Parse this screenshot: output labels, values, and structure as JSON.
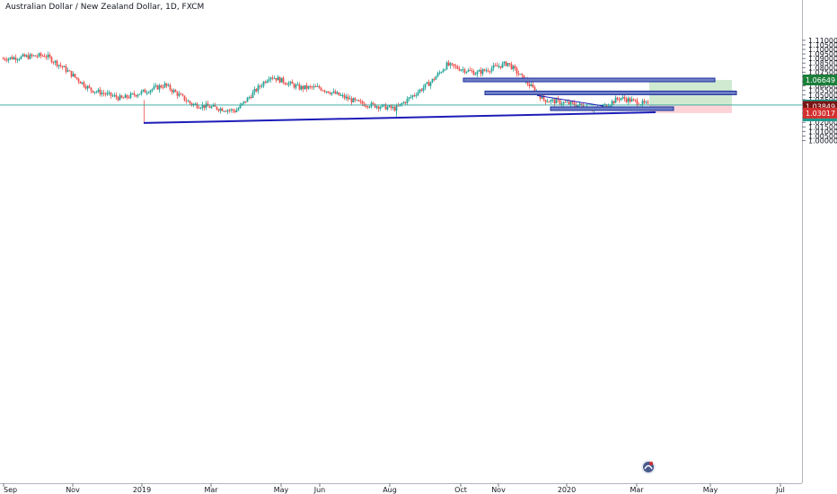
{
  "title": "Australian Dollar / New Zealand Dollar, 1D, FXCM",
  "colors": {
    "up": "#26a69a",
    "down": "#ef5350",
    "trendline": "#1c1cb8",
    "zone_fill": "#6f7fc7",
    "zone_border": "#1c2f9a",
    "target": "#c8e6c9",
    "stop": "#ffcdd2",
    "price_line": "#26a69a",
    "tag_green": "#1b7f3a",
    "tag_dark_red": "#7a1414",
    "tag_red": "#d32f2f",
    "tag_navy": "#131722"
  },
  "chart_data": {
    "type": "candlestick",
    "x_axis_ticks": [
      "Sep",
      "Nov",
      "2019",
      "Mar",
      "May",
      "Jun",
      "Aug",
      "Oct",
      "Nov",
      "2020",
      "Mar",
      "May",
      "Jul"
    ],
    "y_axis_ticks": [
      "1.11000",
      "1.10500",
      "1.10000",
      "1.09500",
      "1.09000",
      "1.08500",
      "1.08000",
      "1.07500",
      "1.07000",
      "1.06500",
      "1.06000",
      "1.05500",
      "1.05000",
      "1.04500",
      "1.04000",
      "1.03500",
      "1.03000",
      "1.02500",
      "1.02000",
      "1.01500",
      "1.01000",
      "1.00500",
      "1.00000"
    ],
    "ylim": [
      0.999,
      1.1115
    ],
    "price_tags": {
      "target": "1.06649",
      "last": "1.03898",
      "countdown": "10:20:23",
      "entry": "1.03849",
      "stop": "1.03017"
    },
    "key_points": [
      {
        "date": "Sep 2018",
        "close": 1.09
      },
      {
        "date": "Nov 2018",
        "close": 1.0935
      },
      {
        "date": "Nov 2018",
        "close": 1.08
      },
      {
        "date": "Dec 2018",
        "close": 1.056
      },
      {
        "date": "2019",
        "close": 1.046
      },
      {
        "date": "Feb 2019",
        "close": 1.061
      },
      {
        "date": "Mar 2019",
        "close": 1.04
      },
      {
        "date": "Apr 2019",
        "close": 1.0325
      },
      {
        "date": "Apr 2019",
        "close": 1.071
      },
      {
        "date": "May 2019",
        "close": 1.058
      },
      {
        "date": "Jun 2019",
        "close": 1.058
      },
      {
        "date": "Jul 2019",
        "close": 1.041
      },
      {
        "date": "Aug 2019",
        "close": 1.035
      },
      {
        "date": "Sep 2019",
        "close": 1.065
      },
      {
        "date": "Oct 2019",
        "close": 1.083
      },
      {
        "date": "Oct 2019",
        "close": 1.074
      },
      {
        "date": "Nov 2019",
        "close": 1.085
      },
      {
        "date": "Dec 2019",
        "close": 1.06
      },
      {
        "date": "Dec 2019",
        "close": 1.045
      },
      {
        "date": "2020",
        "close": 1.039
      },
      {
        "date": "Jan 2020",
        "close": 1.034
      },
      {
        "date": "Feb 2020",
        "close": 1.047
      },
      {
        "date": "Mar 2020",
        "close": 1.039
      }
    ]
  }
}
